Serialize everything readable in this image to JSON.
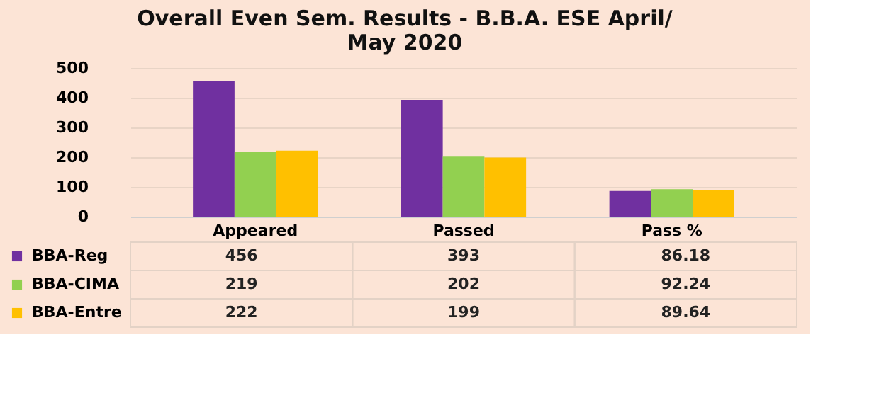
{
  "chart_data": {
    "type": "bar",
    "title": "Overall Even Sem. Results - B.B.A. ESE  April/ May 2020",
    "categories": [
      "Appeared",
      "Passed",
      "Pass %"
    ],
    "series": [
      {
        "name": "BBA-Reg",
        "color": "#7030a0",
        "values": [
          456,
          393,
          86.18
        ]
      },
      {
        "name": "BBA-CIMA",
        "color": "#92d050",
        "values": [
          219,
          202,
          92.24
        ]
      },
      {
        "name": "BBA-Entre",
        "color": "#ffc000",
        "values": [
          222,
          199,
          89.64
        ]
      }
    ],
    "ylim": [
      0,
      500
    ],
    "yticks": [
      0,
      100,
      200,
      300,
      400,
      500
    ],
    "grid": "y",
    "data_labels": true,
    "legend": "bottom"
  }
}
